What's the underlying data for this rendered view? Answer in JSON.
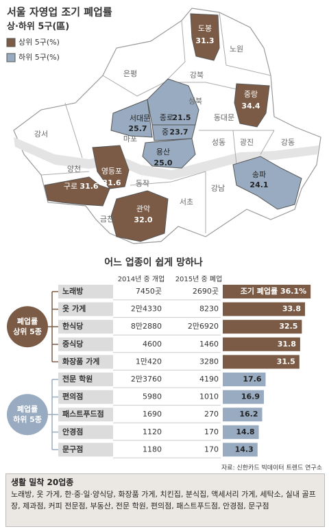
{
  "map": {
    "title": "서울 자영업 조기 폐업률",
    "subtitle": "상·하위 5구(區)",
    "legend": [
      {
        "label": "상위 5구(%)",
        "color": "#7b5b45"
      },
      {
        "label": "하위 5구(%)",
        "color": "#98abc0"
      }
    ],
    "districts": [
      {
        "name": "도봉",
        "value": 31.3,
        "group": 0
      },
      {
        "name": "중랑",
        "value": 34.4,
        "group": 0
      },
      {
        "name": "영등포",
        "value": 31.6,
        "group": 0
      },
      {
        "name": "구로",
        "value": 31.6,
        "group": 0
      },
      {
        "name": "관악",
        "value": 32,
        "label": "32.0",
        "group": 0
      },
      {
        "name": "서대문",
        "value": 25.7,
        "group": 1
      },
      {
        "name": "종로",
        "value": 21.5,
        "group": 1
      },
      {
        "name": "중",
        "value": 23.7,
        "group": 1
      },
      {
        "name": "용산",
        "value": 25,
        "label": "25.0",
        "group": 1
      },
      {
        "name": "송파",
        "value": 24.1,
        "group": 1
      }
    ],
    "other_districts": [
      "노원",
      "강북",
      "은평",
      "성북",
      "동대문",
      "강서",
      "마포",
      "성동",
      "광진",
      "강동",
      "양천",
      "동작",
      "강남",
      "서초",
      "금천"
    ]
  },
  "chart_data": {
    "type": "bar",
    "title": "어느 업종이 쉽게 망하나",
    "columns": [
      "2014년 중 개업",
      "2015년 중 폐업"
    ],
    "groups": [
      {
        "label": "폐업률\n상위 5종",
        "color": "#7b5b45",
        "categories": [
          "노래방",
          "옷 가게",
          "한식당",
          "중식당",
          "화장품 가게"
        ],
        "opened": [
          "7450곳",
          "2만4330",
          "8만2880",
          "4600",
          "1만420"
        ],
        "closed": [
          "2690곳",
          "8230",
          "2만6920",
          "1460",
          "3280"
        ],
        "values": [
          36.1,
          33.8,
          32.5,
          31.8,
          31.5
        ],
        "value_labels": [
          "조기 폐업률 36.1%",
          "33.8",
          "32.5",
          "31.8",
          "31.5"
        ]
      },
      {
        "label": "폐업률\n하위 5종",
        "color": "#98abc0",
        "categories": [
          "전문 학원",
          "편의점",
          "패스트푸드점",
          "안경점",
          "문구점"
        ],
        "opened": [
          "2만3760",
          "5980",
          "1690",
          "1120",
          "1180"
        ],
        "closed": [
          "4190",
          "1010",
          "270",
          "170",
          "170"
        ],
        "values": [
          17.6,
          16.9,
          16.2,
          14.8,
          14.3
        ],
        "value_labels": [
          "17.6",
          "16.9",
          "16.2",
          "14.8",
          "14.3"
        ]
      }
    ],
    "source": "자료: 신한카드 빅데이터 트렌드 연구소"
  },
  "note": {
    "title": "생활 밀착 20업종",
    "text": "노래방, 옷 가게, 한·중·일·양식당, 화장품 가게, 치킨집, 분식집, 액세서리 가게, 세탁소, 실내 골프장, 제과점, 커피 전문점, 부동산, 전문 학원, 편의점, 패스트푸드점, 안경점, 문구점"
  }
}
